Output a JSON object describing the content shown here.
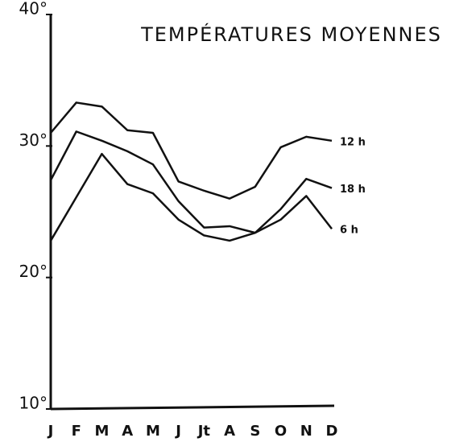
{
  "chart_data": {
    "type": "line",
    "title": "TEMPÉRATURES MOYENNES",
    "categories": [
      "J",
      "F",
      "M",
      "A",
      "M",
      "J",
      "Jt",
      "A",
      "S",
      "O",
      "N",
      "D"
    ],
    "series": [
      {
        "name": "12 h",
        "color": "#111111",
        "values": [
          31.0,
          33.3,
          33.0,
          31.2,
          31.0,
          27.3,
          26.6,
          26.0,
          26.9,
          29.9,
          30.7,
          30.4
        ]
      },
      {
        "name": "18 h",
        "color": "#111111",
        "values": [
          27.4,
          31.1,
          30.4,
          29.6,
          28.6,
          25.8,
          23.8,
          23.9,
          23.4,
          25.2,
          27.5,
          26.8
        ]
      },
      {
        "name": "6 h",
        "color": "#111111",
        "values": [
          22.8,
          26.1,
          29.4,
          27.1,
          26.4,
          24.4,
          23.2,
          22.8,
          23.4,
          24.4,
          26.2,
          23.7
        ]
      }
    ],
    "ylim": [
      10,
      40
    ],
    "yticks": [
      {
        "value": 10,
        "label": "10°"
      },
      {
        "value": 20,
        "label": "20°"
      },
      {
        "value": 30,
        "label": "30°"
      },
      {
        "value": 40,
        "label": "40°"
      }
    ]
  }
}
